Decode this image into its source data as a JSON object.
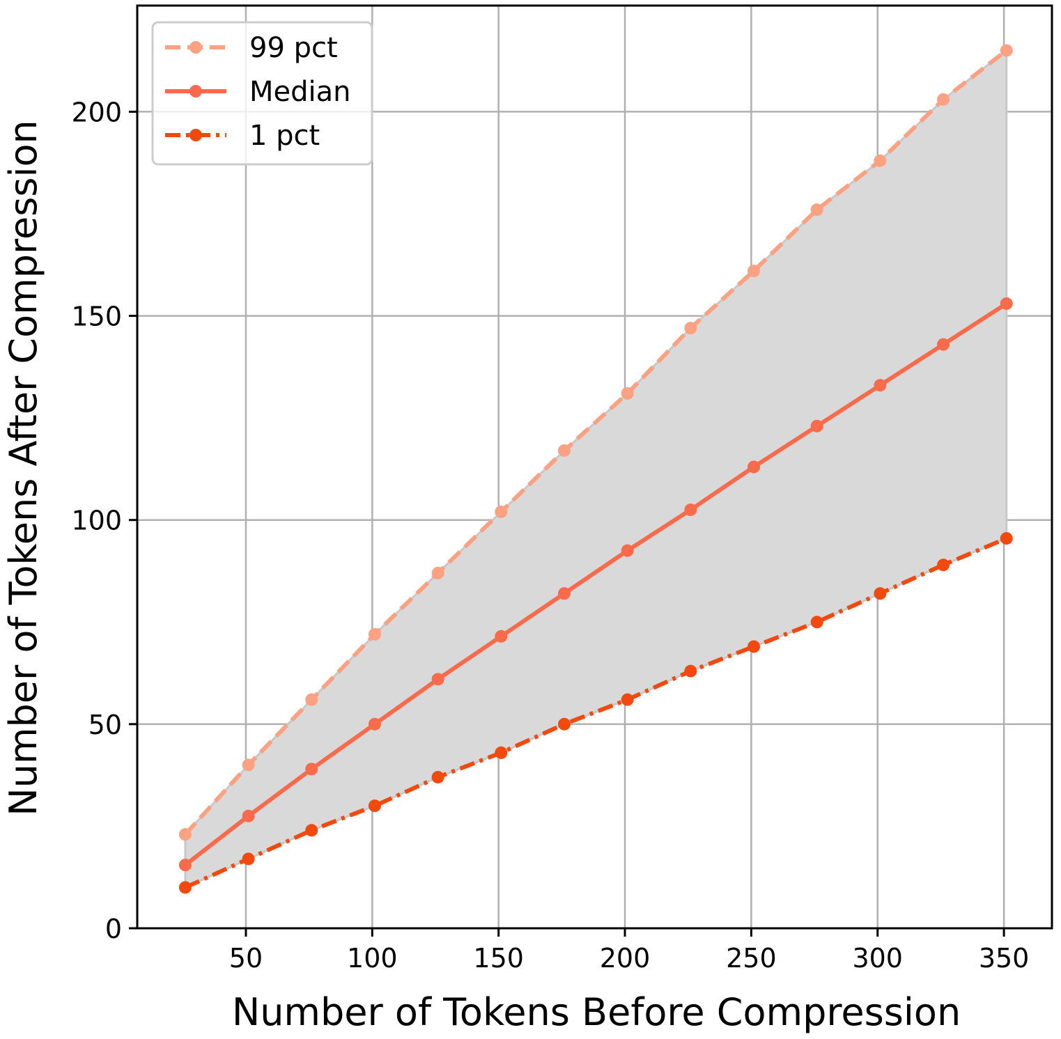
{
  "chart_data": {
    "type": "line",
    "xlabel": "Number of Tokens Before Compression",
    "ylabel": "Number of Tokens After Compression",
    "xlim": [
      7,
      369
    ],
    "ylim": [
      0,
      226
    ],
    "xticks": [
      50,
      100,
      150,
      200,
      250,
      300,
      350
    ],
    "yticks": [
      0,
      50,
      100,
      150,
      200
    ],
    "grid": true,
    "legend_position": "top-left",
    "fill_between": {
      "upper": "99 pct",
      "lower": "1 pct",
      "color": "#d9d9d9"
    },
    "x": [
      26,
      51,
      76,
      101,
      126,
      151,
      176,
      201,
      226,
      251,
      276,
      301,
      326,
      351
    ],
    "series": [
      {
        "name": "99 pct",
        "color": "#fca282",
        "style": "dashed",
        "values": [
          23,
          40,
          56,
          72,
          87,
          102,
          117,
          131,
          147,
          161,
          176,
          188,
          203,
          215
        ]
      },
      {
        "name": "Median",
        "color": "#fb6a4a",
        "style": "solid",
        "values": [
          15.5,
          27.5,
          39,
          50,
          61,
          71.5,
          82,
          92.5,
          102.5,
          113,
          123,
          133,
          143,
          153
        ]
      },
      {
        "name": "1 pct",
        "color": "#f24a0e",
        "style": "dashdot",
        "values": [
          10,
          17,
          24,
          30,
          37,
          43,
          50,
          56,
          63,
          69,
          75,
          82,
          89,
          95.5
        ]
      }
    ]
  }
}
